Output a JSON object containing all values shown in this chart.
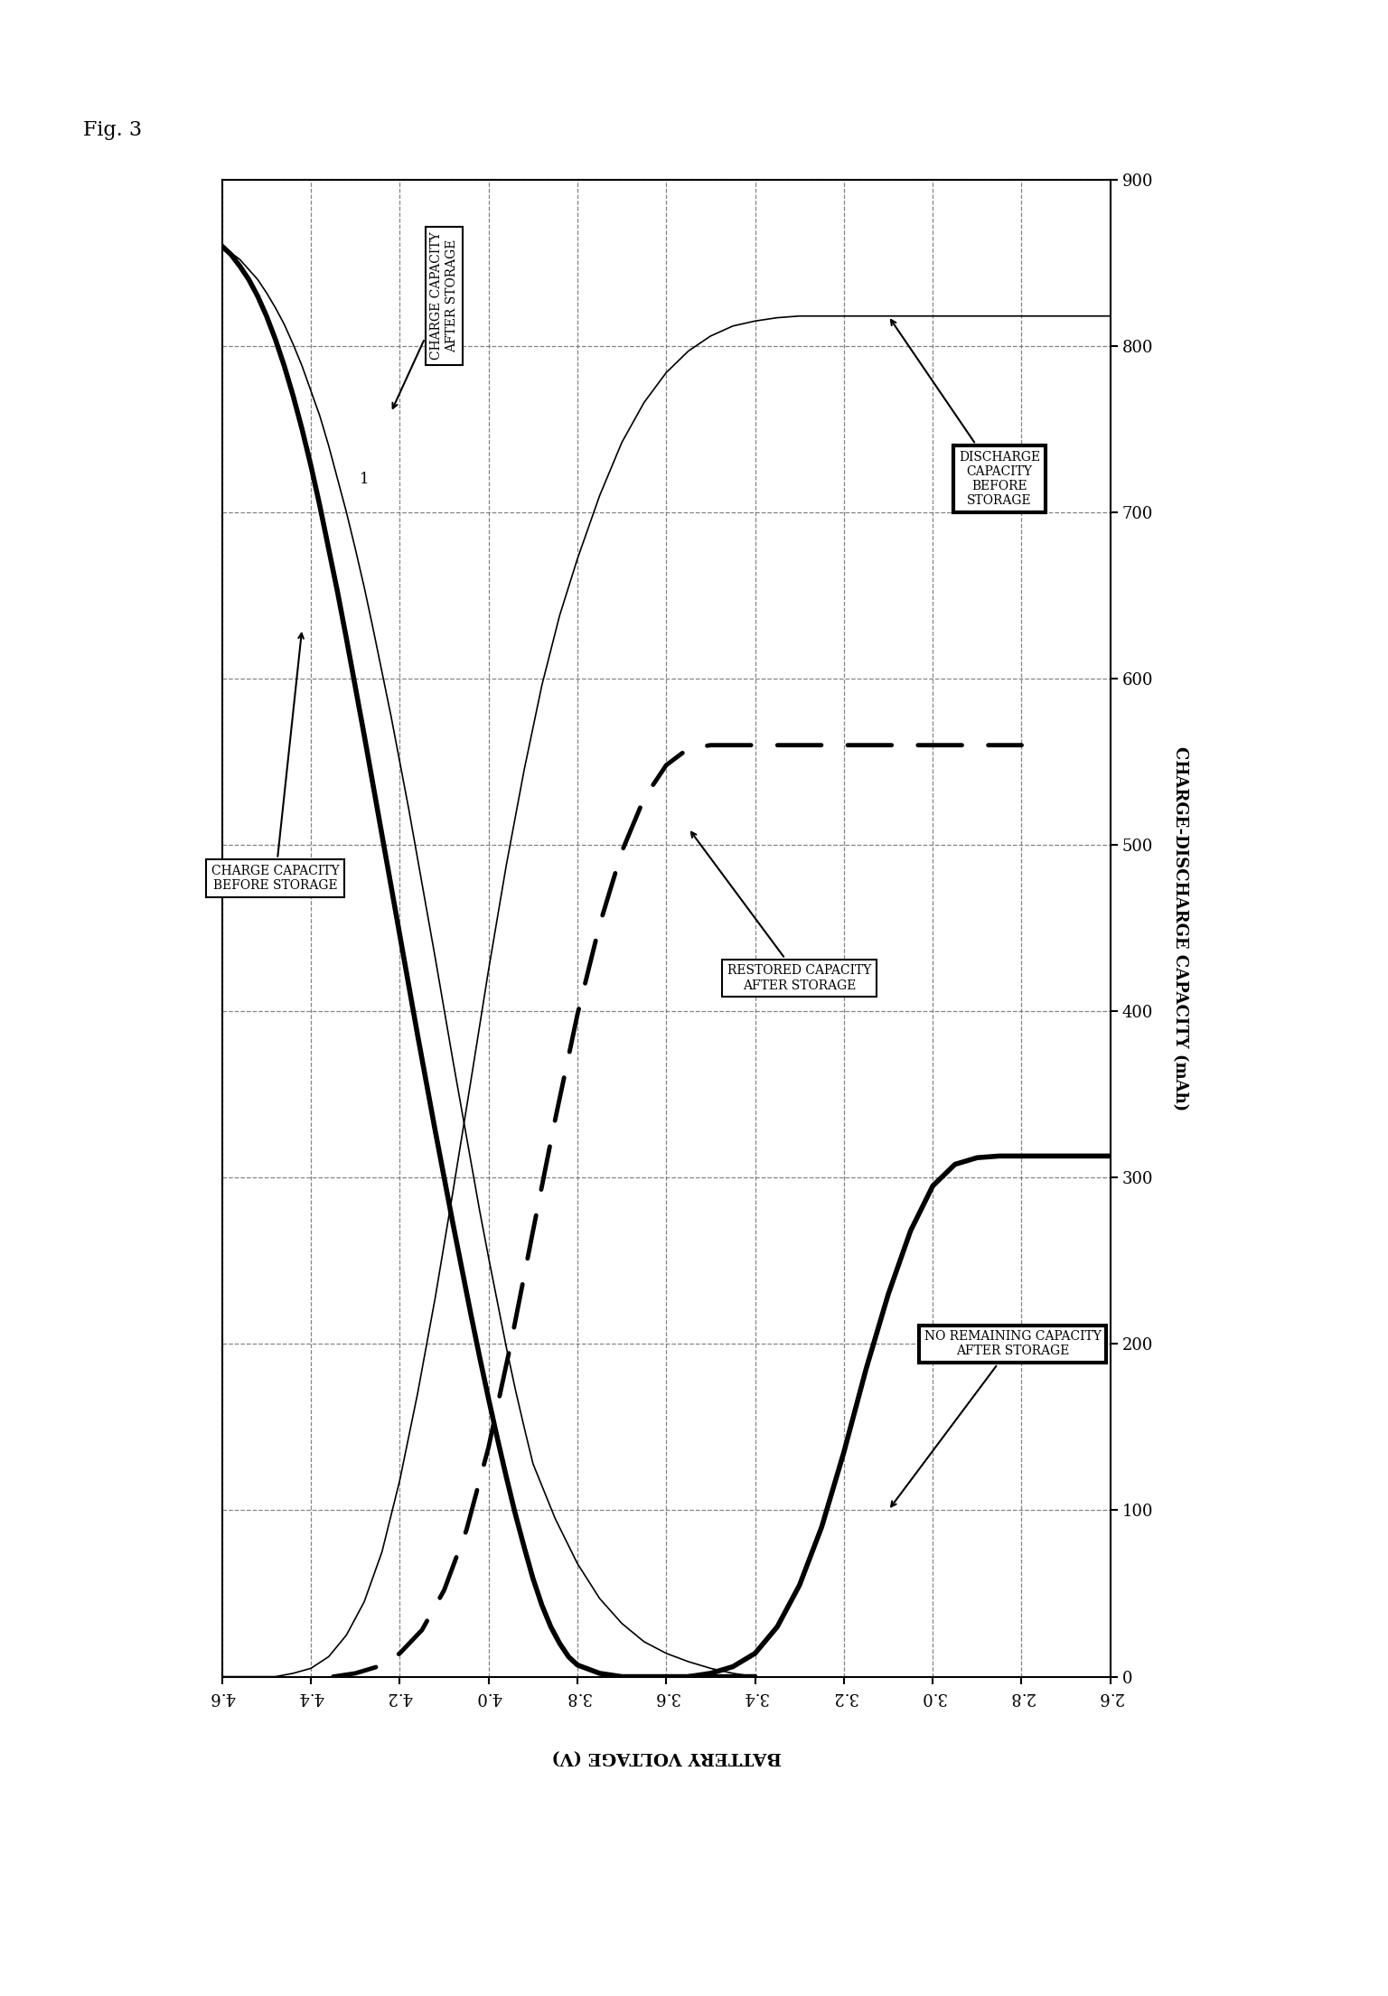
{
  "title": "Fig. 3",
  "x_label": "BATTERY VOLTAGE (V)",
  "y_label": "CHARGE-DISCHARGE CAPACITY (mAh)",
  "x_lim": [
    4.6,
    2.6
  ],
  "y_lim": [
    0,
    900
  ],
  "x_ticks": [
    4.6,
    4.4,
    4.2,
    4.0,
    3.8,
    3.6,
    3.4,
    3.2,
    3.0,
    2.8,
    2.6
  ],
  "y_ticks": [
    0,
    100,
    200,
    300,
    400,
    500,
    600,
    700,
    800,
    900
  ],
  "background_color": "#ffffff",
  "charge_before_storage_x": [
    4.6,
    4.58,
    4.56,
    4.54,
    4.52,
    4.5,
    4.48,
    4.46,
    4.44,
    4.42,
    4.4,
    4.38,
    4.36,
    4.34,
    4.32,
    4.3,
    4.28,
    4.26,
    4.24,
    4.22,
    4.2,
    4.18,
    4.16,
    4.14,
    4.12,
    4.1,
    4.08,
    4.06,
    4.04,
    4.02,
    4.0,
    3.98,
    3.96,
    3.94,
    3.92,
    3.9,
    3.88,
    3.86,
    3.84,
    3.82,
    3.8,
    3.75,
    3.7,
    3.6,
    3.5,
    3.4
  ],
  "charge_before_storage_y": [
    860,
    855,
    848,
    840,
    830,
    818,
    804,
    788,
    770,
    750,
    728,
    704,
    678,
    652,
    624,
    595,
    566,
    536,
    506,
    476,
    446,
    416,
    386,
    357,
    328,
    300,
    272,
    245,
    218,
    192,
    167,
    143,
    120,
    98,
    78,
    59,
    43,
    30,
    20,
    12,
    7,
    2,
    0,
    0,
    0,
    0
  ],
  "charge_after_storage_x": [
    4.6,
    4.58,
    4.56,
    4.54,
    4.52,
    4.5,
    4.48,
    4.46,
    4.44,
    4.42,
    4.4,
    4.38,
    4.36,
    4.34,
    4.32,
    4.3,
    4.28,
    4.26,
    4.24,
    4.22,
    4.2,
    4.18,
    4.16,
    4.14,
    4.12,
    4.1,
    4.08,
    4.06,
    4.04,
    4.02,
    4.0,
    3.98,
    3.96,
    3.94,
    3.92,
    3.9,
    3.85,
    3.8,
    3.75,
    3.7,
    3.65,
    3.6,
    3.55,
    3.5,
    3.45,
    3.4
  ],
  "charge_after_storage_y": [
    860,
    856,
    852,
    846,
    840,
    832,
    823,
    813,
    801,
    788,
    773,
    758,
    740,
    720,
    700,
    678,
    655,
    630,
    604,
    578,
    550,
    522,
    492,
    462,
    432,
    401,
    370,
    340,
    310,
    280,
    252,
    225,
    198,
    173,
    150,
    128,
    95,
    68,
    47,
    32,
    21,
    14,
    9,
    5,
    2,
    0
  ],
  "discharge_before_storage_x": [
    4.6,
    4.56,
    4.52,
    4.48,
    4.44,
    4.4,
    4.36,
    4.32,
    4.28,
    4.24,
    4.2,
    4.16,
    4.12,
    4.08,
    4.04,
    4.0,
    3.96,
    3.92,
    3.88,
    3.84,
    3.8,
    3.75,
    3.7,
    3.65,
    3.6,
    3.55,
    3.5,
    3.45,
    3.4,
    3.35,
    3.3,
    3.25,
    3.2,
    3.15,
    3.1,
    3.05,
    3.0,
    2.95,
    2.9,
    2.85,
    2.8,
    2.75,
    2.7,
    2.65,
    2.6
  ],
  "discharge_before_storage_y": [
    0,
    0,
    0,
    0,
    2,
    5,
    12,
    25,
    45,
    75,
    118,
    170,
    228,
    292,
    358,
    425,
    488,
    545,
    596,
    638,
    672,
    710,
    742,
    766,
    784,
    797,
    806,
    812,
    815,
    817,
    818,
    818,
    818,
    818,
    818,
    818,
    818,
    818,
    818,
    818,
    818,
    818,
    818,
    818,
    818
  ],
  "restored_capacity_x": [
    4.35,
    4.3,
    4.25,
    4.2,
    4.15,
    4.1,
    4.05,
    4.0,
    3.95,
    3.9,
    3.85,
    3.8,
    3.75,
    3.7,
    3.65,
    3.6,
    3.55,
    3.5,
    3.45,
    3.4,
    3.35,
    3.3,
    3.25,
    3.2,
    3.15,
    3.1,
    3.05,
    3.0,
    2.95,
    2.9,
    2.85,
    2.8
  ],
  "restored_capacity_y": [
    0,
    2,
    6,
    14,
    28,
    52,
    88,
    138,
    200,
    268,
    335,
    398,
    452,
    496,
    528,
    548,
    558,
    560,
    560,
    560,
    560,
    560,
    560,
    560,
    560,
    560,
    560,
    560,
    560,
    560,
    560,
    560
  ],
  "no_remaining_x": [
    3.55,
    3.5,
    3.45,
    3.4,
    3.35,
    3.3,
    3.25,
    3.2,
    3.15,
    3.1,
    3.05,
    3.0,
    2.95,
    2.9,
    2.85,
    2.8,
    2.75,
    2.7,
    2.65,
    2.6
  ],
  "no_remaining_y": [
    0,
    2,
    6,
    14,
    30,
    55,
    90,
    135,
    185,
    230,
    268,
    295,
    308,
    312,
    313,
    313,
    313,
    313,
    313,
    313
  ],
  "ann_charge_before_label": "CHARGE CAPACITY\nBEFORE STORAGE",
  "ann_charge_after_label": "CHARGE CAPACITY\nAFTER STORAGE",
  "ann_discharge_before_label": "DISCHARGE\nCAPACITY\nBEFORE\nSTORAGE",
  "ann_restored_label": "RESTORED CAPACITY\nAFTER STORAGE",
  "ann_no_remaining_label": "NO REMAINING CAPACITY\nAFTER STORAGE"
}
